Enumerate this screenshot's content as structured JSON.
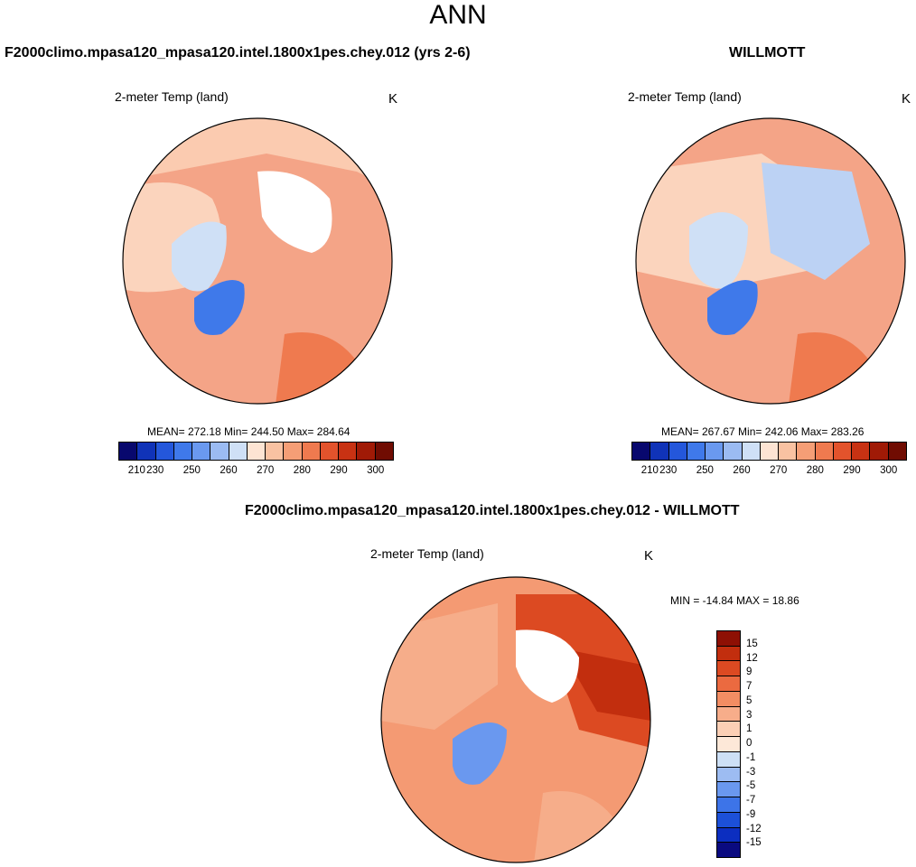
{
  "main_title": "ANN",
  "panels": [
    {
      "case_title": "F2000climo.mpasa120_mpasa120.intel.1800x1pes.chey.012 (yrs 2-6)",
      "variable": "2-meter Temp (land)",
      "units": "K",
      "stats": "MEAN= 272.18  Min= 244.50  Max= 284.64",
      "mean": 272.18,
      "min": 244.5,
      "max": 284.64
    },
    {
      "case_title": "WILLMOTT",
      "variable": "2-meter Temp (land)",
      "units": "K",
      "stats": "MEAN= 267.67  Min= 242.06  Max= 283.26",
      "mean": 267.67,
      "min": 242.06,
      "max": 283.26
    }
  ],
  "diff_panel": {
    "case_title": "F2000climo.mpasa120_mpasa120.intel.1800x1pes.chey.012 - WILLMOTT",
    "variable": "2-meter Temp (land)",
    "units": "K",
    "stats": "MIN = -14.84 MAX =  18.86",
    "min": -14.84,
    "max": 18.86
  },
  "abs_colorbar": {
    "colors": [
      "#08086e",
      "#1033b8",
      "#2457db",
      "#3f79ea",
      "#6a99ef",
      "#9bbbf2",
      "#cfe0f6",
      "#fde4d3",
      "#f9c2a2",
      "#f59e76",
      "#ef7a4f",
      "#e3532c",
      "#c83213",
      "#a01a06",
      "#700c02"
    ],
    "tick_labels": [
      "210",
      "230",
      "250",
      "260",
      "270",
      "280",
      "290",
      "300"
    ]
  },
  "diff_colorbar": {
    "colors": [
      "#0a0a80",
      "#0c2ec0",
      "#1c50d8",
      "#3d74e8",
      "#6a98ef",
      "#9dbcf2",
      "#cde0f6",
      "#fde8d8",
      "#fbcfb5",
      "#f7ad8a",
      "#f28d63",
      "#eb6a40",
      "#dc4a22",
      "#c22e0e",
      "#8e1004"
    ],
    "tick_labels": [
      "15",
      "12",
      "9",
      "7",
      "5",
      "3",
      "1",
      "0",
      "-1",
      "-3",
      "-5",
      "-7",
      "-9",
      "-12",
      "-15"
    ]
  }
}
